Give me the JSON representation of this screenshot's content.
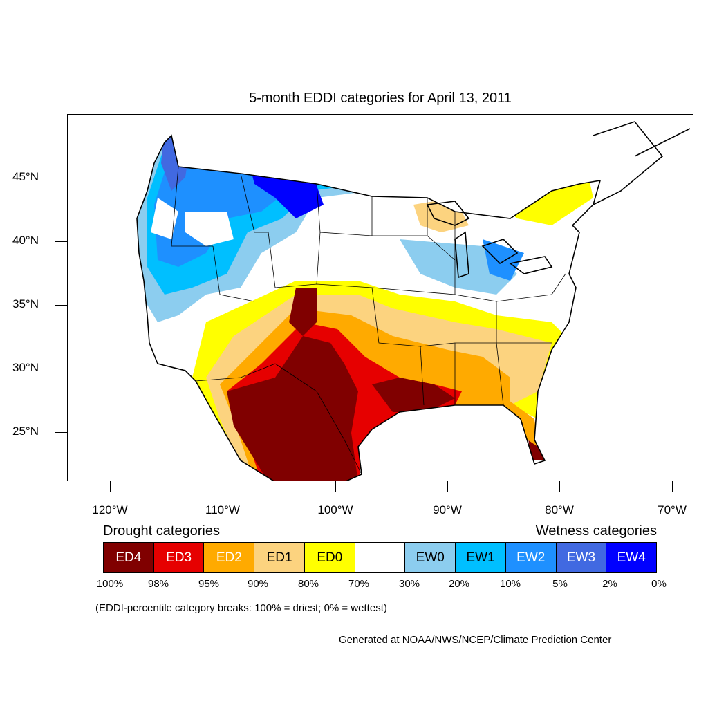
{
  "title": "5-month EDDI categories for April 13, 2011",
  "lat_labels": [
    "45°N",
    "40°N",
    "35°N",
    "30°N",
    "25°N"
  ],
  "lon_labels": [
    "120°W",
    "110°W",
    "100°W",
    "90°W",
    "80°W",
    "70°W"
  ],
  "legend": {
    "drought_title": "Drought categories",
    "wetness_title": "Wetness categories",
    "categories": [
      {
        "label": "ED4",
        "color": "#800000",
        "text_color": "#ffffff"
      },
      {
        "label": "ED3",
        "color": "#e60000",
        "text_color": "#ffffff"
      },
      {
        "label": "ED2",
        "color": "#ffaa00",
        "text_color": "#ffffff"
      },
      {
        "label": "ED1",
        "color": "#fcd37f",
        "text_color": "#000000"
      },
      {
        "label": "ED0",
        "color": "#ffff00",
        "text_color": "#000000"
      },
      {
        "label": "",
        "color": "#ffffff",
        "text_color": "#000000"
      },
      {
        "label": "EW0",
        "color": "#8ccdef",
        "text_color": "#000000"
      },
      {
        "label": "EW1",
        "color": "#00bfff",
        "text_color": "#000000"
      },
      {
        "label": "EW2",
        "color": "#1e90ff",
        "text_color": "#ffffff"
      },
      {
        "label": "EW3",
        "color": "#4169e1",
        "text_color": "#ffffff"
      },
      {
        "label": "EW4",
        "color": "#0000ff",
        "text_color": "#ffffff"
      }
    ],
    "percentiles": [
      "100%",
      "98%",
      "95%",
      "90%",
      "80%",
      "70%",
      "30%",
      "20%",
      "10%",
      "5%",
      "2%",
      "0%"
    ]
  },
  "note": "(EDDI-percentile category breaks: 100% = driest; 0% = wettest)",
  "credit": "Generated at NOAA/NWS/NCEP/Climate Prediction Center"
}
